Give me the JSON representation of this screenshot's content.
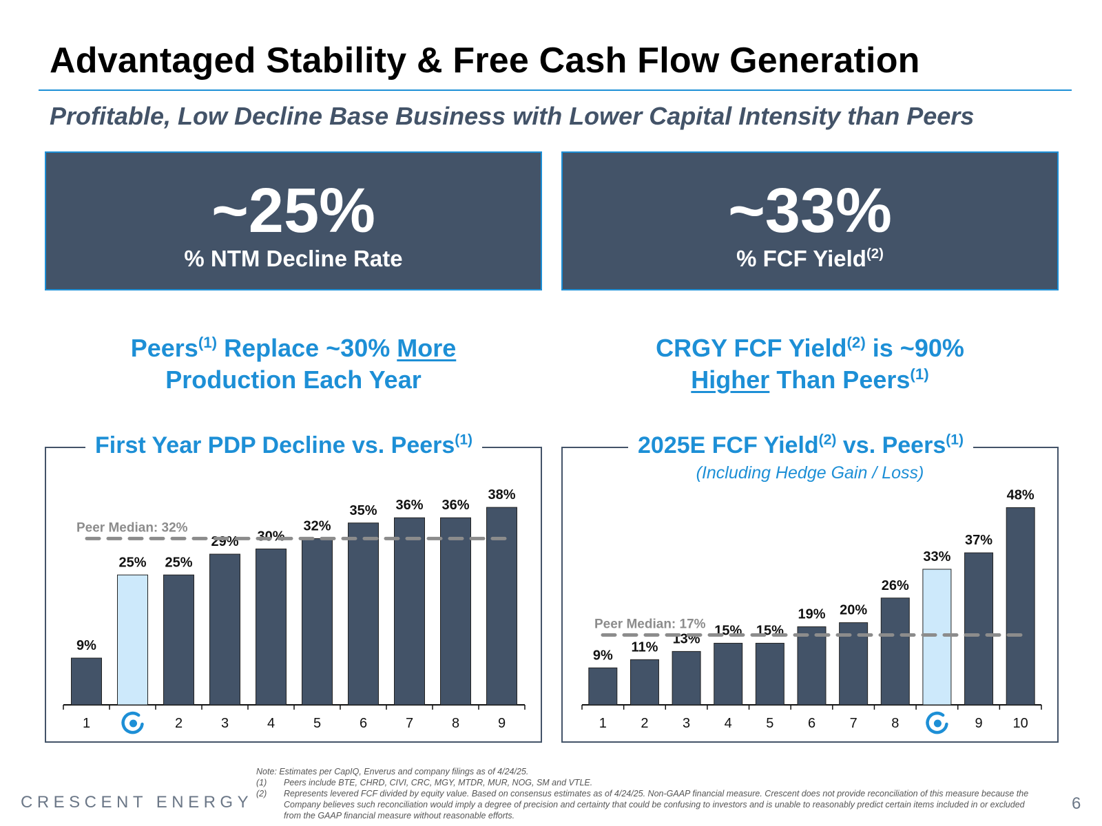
{
  "title": "Advantaged Stability & Free Cash Flow Generation",
  "subtitle": "Profitable, Low Decline Base Business with Lower Capital Intensity than Peers",
  "kpis": [
    {
      "value": "~25%",
      "label": "% NTM Decline Rate",
      "sup": ""
    },
    {
      "value": "~33%",
      "label": "% FCF Yield",
      "sup": "(2)"
    }
  ],
  "headlines": {
    "left": {
      "part1": "Peers",
      "sup1": "(1)",
      "part2": " Replace ~30% ",
      "underlined": "More",
      "line2": "Production Each Year"
    },
    "right": {
      "part1": "CRGY FCF Yield",
      "sup1": "(2)",
      "part2": " is ~90%",
      "underlined": "Higher",
      "part3": " Than Peers",
      "sup2": "(1)"
    }
  },
  "colors": {
    "bar": "#435368",
    "highlight": "#cde9fb",
    "accent": "#1d8fd6",
    "median": "#8c8c8c"
  },
  "chart_data": [
    {
      "type": "bar",
      "title": "First Year PDP Decline vs. Peers",
      "title_sup": "(1)",
      "categories": [
        "1",
        "crescent-logo",
        "2",
        "3",
        "4",
        "5",
        "6",
        "7",
        "8",
        "9"
      ],
      "values": [
        9,
        25,
        25,
        29,
        30,
        32,
        35,
        36,
        36,
        38
      ],
      "labels": [
        "9%",
        "25%",
        "25%",
        "29%",
        "30%",
        "32%",
        "35%",
        "36%",
        "36%",
        "38%"
      ],
      "highlight_index": 1,
      "median": 32,
      "median_label": "Peer Median: 32%",
      "ylim": [
        0,
        40
      ]
    },
    {
      "type": "bar",
      "title": "2025E FCF Yield",
      "title_sup": "(2)",
      "title_rest": " vs. Peers",
      "title_sup2": "(1)",
      "subtitle": "(Including Hedge Gain / Loss)",
      "categories": [
        "1",
        "2",
        "3",
        "4",
        "5",
        "6",
        "7",
        "8",
        "crescent-logo",
        "9",
        "10"
      ],
      "values": [
        9,
        11,
        13,
        15,
        15,
        19,
        20,
        26,
        33,
        37,
        48
      ],
      "labels": [
        "9%",
        "11%",
        "13%",
        "15%",
        "15%",
        "19%",
        "20%",
        "26%",
        "33%",
        "37%",
        "48%"
      ],
      "highlight_index": 8,
      "median": 17,
      "median_label": "Peer Median: 17%",
      "ylim": [
        0,
        50
      ]
    }
  ],
  "footer": {
    "brand": "CRESCENT ENERGY",
    "page": "6",
    "note": "Note: Estimates per CapIQ, Enverus and company filings as of 4/24/25.",
    "footnotes": [
      {
        "mark": "(1)",
        "text": "Peers include BTE, CHRD, CIVI, CRC, MGY, MTDR, MUR, NOG, SM and VTLE."
      },
      {
        "mark": "(2)",
        "text": "Represents levered FCF divided by equity value. Based on consensus estimates as of 4/24/25. Non-GAAP financial measure. Crescent does not provide reconciliation of this measure because the Company believes such reconciliation would imply a degree of precision and certainty that could be confusing to investors and is unable to reasonably predict certain items included in or excluded from the GAAP financial measure without reasonable efforts."
      }
    ]
  }
}
